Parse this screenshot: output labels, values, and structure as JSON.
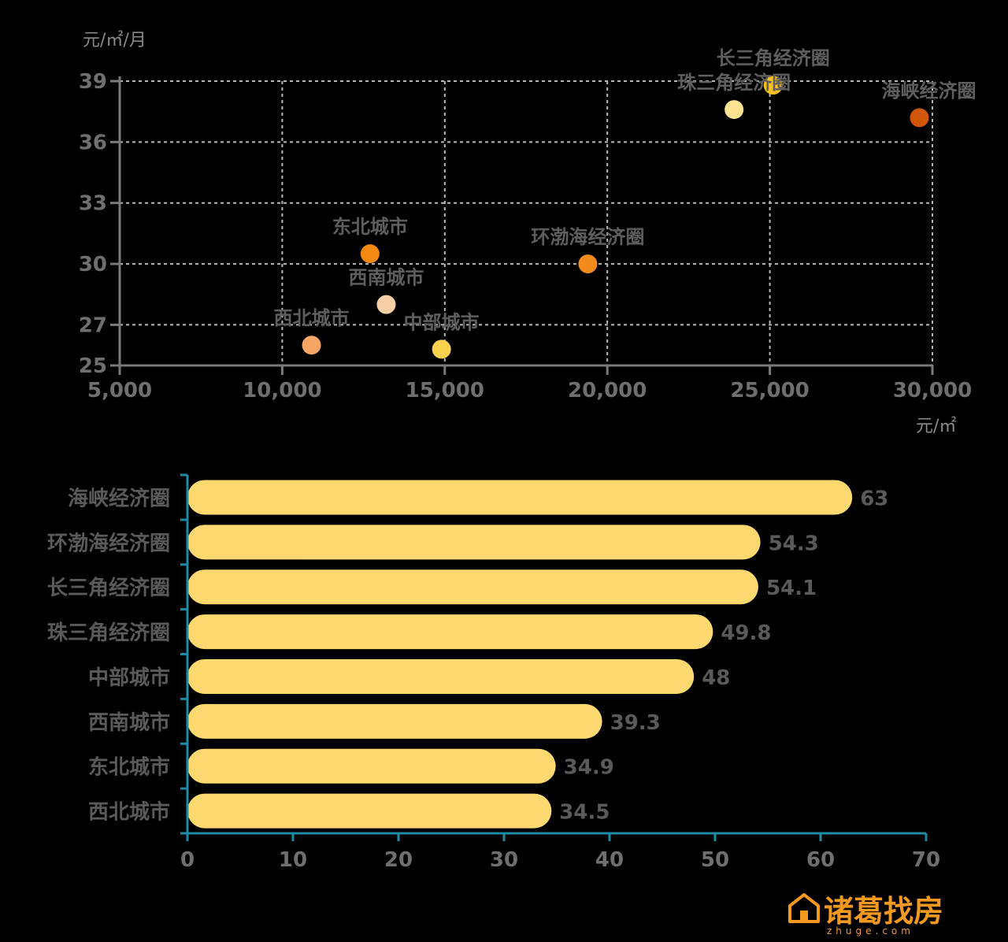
{
  "chart_data": [
    {
      "type": "scatter",
      "xlabel": "元/㎡",
      "ylabel": "元/㎡/月",
      "xlim": [
        5000,
        30000
      ],
      "ylim": [
        25,
        39
      ],
      "xticks": [
        5000,
        10000,
        15000,
        20000,
        25000,
        30000
      ],
      "xtick_labels": [
        "5,000",
        "10,000",
        "15,000",
        "20,000",
        "25,000",
        "30,000"
      ],
      "yticks": [
        25,
        27,
        30,
        33,
        36,
        39
      ],
      "grid": true,
      "points": [
        {
          "label": "长三角经济圈",
          "x": 25100,
          "y": 38.8,
          "color": "#f6c021"
        },
        {
          "label": "珠三角经济圈",
          "x": 23900,
          "y": 37.6,
          "color": "#fde392"
        },
        {
          "label": "海峡经济圈",
          "x": 29600,
          "y": 37.2,
          "color": "#d2560a"
        },
        {
          "label": "东北城市",
          "x": 12700,
          "y": 30.5,
          "color": "#f48a10"
        },
        {
          "label": "环渤海经济圈",
          "x": 19400,
          "y": 30.0,
          "color": "#f28a1c"
        },
        {
          "label": "西南城市",
          "x": 13200,
          "y": 28.0,
          "color": "#f9d0a6"
        },
        {
          "label": "西北城市",
          "x": 10900,
          "y": 26.0,
          "color": "#f7a765"
        },
        {
          "label": "中部城市",
          "x": 14900,
          "y": 25.8,
          "color": "#fbd24e"
        }
      ]
    },
    {
      "type": "bar",
      "orientation": "horizontal",
      "categories": [
        "海峡经济圈",
        "环渤海经济圈",
        "长三角经济圈",
        "珠三角经济圈",
        "中部城市",
        "西南城市",
        "东北城市",
        "西北城市"
      ],
      "values": [
        63,
        54.3,
        54.1,
        49.8,
        48,
        39.3,
        34.9,
        34.5
      ],
      "value_labels": [
        "63",
        "54.3",
        "54.1",
        "49.8",
        "48",
        "39.3",
        "34.9",
        "34.5"
      ],
      "xlim": [
        0,
        70
      ],
      "xticks": [
        0,
        10,
        20,
        30,
        40,
        50,
        60,
        70
      ],
      "bar_color": "#fdd96f",
      "axis_color": "#1f8aa5"
    }
  ],
  "logo": {
    "text": "诸葛找房",
    "sub": "zhuge.com"
  }
}
